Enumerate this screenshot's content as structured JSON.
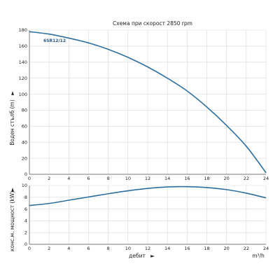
{
  "chart_data": [
    {
      "type": "line",
      "title": "Схема при скорост 2850 rpm",
      "xlabel": "",
      "ylabel": "Воден стълб (m)",
      "ylabel_arrow": "►",
      "xlim": [
        0,
        24
      ],
      "ylim": [
        0,
        180
      ],
      "xticks": [
        0,
        2,
        4,
        6,
        8,
        10,
        12,
        14,
        16,
        18,
        20,
        22,
        24
      ],
      "yticks": [
        0,
        20,
        40,
        60,
        80,
        100,
        120,
        140,
        160,
        180
      ],
      "grid": true,
      "series": [
        {
          "name": "6SR12/12",
          "x": [
            0,
            2,
            4,
            6,
            8,
            10,
            12,
            14,
            16,
            18,
            20,
            22,
            24
          ],
          "y": [
            178,
            175,
            170,
            164,
            156,
            146,
            134,
            120,
            104,
            84,
            61,
            35,
            2
          ]
        }
      ]
    },
    {
      "type": "line",
      "title": "",
      "xlabel": "дебит",
      "xlabel_arrow": "►",
      "xunit": "m³/h",
      "ylabel": "конс.м. мощност (kW)",
      "ylabel_arrow": "►",
      "xlim": [
        0,
        24
      ],
      "ylim": [
        0,
        10
      ],
      "xticks": [
        0,
        2,
        4,
        6,
        8,
        10,
        12,
        14,
        16,
        18,
        20,
        22,
        24
      ],
      "yticks": [
        0,
        2,
        4,
        6,
        8,
        10
      ],
      "grid": true,
      "series": [
        {
          "x": [
            0,
            2,
            4,
            6,
            8,
            10,
            12,
            14,
            16,
            18,
            20,
            22,
            24
          ],
          "y": [
            6.6,
            6.95,
            7.5,
            8.05,
            8.6,
            9.1,
            9.5,
            9.75,
            9.8,
            9.65,
            9.3,
            8.7,
            7.9
          ]
        }
      ]
    }
  ],
  "colors": {
    "curve": "#2e6fa0",
    "grid": "#d9d9d9",
    "axis": "#555555"
  }
}
